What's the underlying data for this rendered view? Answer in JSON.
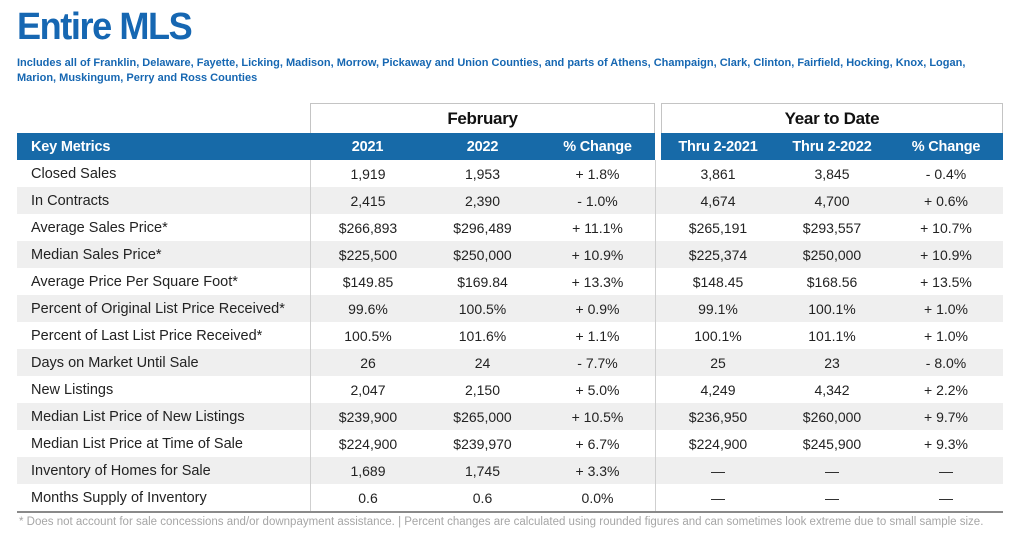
{
  "page": {
    "title": "Entire MLS",
    "subtitle": "Includes all of Franklin, Delaware, Fayette, Licking, Madison, Morrow, Pickaway and Union Counties, and parts of Athens, Champaign, Clark, Clinton, Fairfield, Hocking, Knox, Logan, Marion, Muskingum, Perry and Ross Counties",
    "footnote": "* Does not account for sale concessions and/or downpayment assistance. | Percent changes are calculated using rounded figures and can sometimes look extreme due to small sample size."
  },
  "colors": {
    "title_blue": "#1667B2",
    "header_bar_blue": "#176AA8",
    "stripe_gray": "#EFEFEF",
    "footnote_gray": "#A6A6A6"
  },
  "table": {
    "group_headers": {
      "february": "February",
      "year_to_date": "Year to Date"
    },
    "columns": {
      "key_metrics": "Key Metrics",
      "feb_2021": "2021",
      "feb_2022": "2022",
      "feb_change": "% Change",
      "ytd_2021": "Thru 2-2021",
      "ytd_2022": "Thru 2-2022",
      "ytd_change": "% Change"
    },
    "rows": [
      {
        "label": "Closed Sales",
        "cells": [
          "1,919",
          "1,953",
          "+ 1.8%",
          "3,861",
          "3,845",
          "- 0.4%"
        ]
      },
      {
        "label": "In Contracts",
        "cells": [
          "2,415",
          "2,390",
          "- 1.0%",
          "4,674",
          "4,700",
          "+ 0.6%"
        ]
      },
      {
        "label": "Average Sales Price*",
        "cells": [
          "$266,893",
          "$296,489",
          "+ 11.1%",
          "$265,191",
          "$293,557",
          "+ 10.7%"
        ]
      },
      {
        "label": "Median Sales Price*",
        "cells": [
          "$225,500",
          "$250,000",
          "+ 10.9%",
          "$225,374",
          "$250,000",
          "+ 10.9%"
        ]
      },
      {
        "label": "Average Price Per Square Foot*",
        "cells": [
          "$149.85",
          "$169.84",
          "+ 13.3%",
          "$148.45",
          "$168.56",
          "+ 13.5%"
        ]
      },
      {
        "label": "Percent of Original List Price Received*",
        "cells": [
          "99.6%",
          "100.5%",
          "+ 0.9%",
          "99.1%",
          "100.1%",
          "+ 1.0%"
        ]
      },
      {
        "label": "Percent of Last List Price Received*",
        "cells": [
          "100.5%",
          "101.6%",
          "+ 1.1%",
          "100.1%",
          "101.1%",
          "+ 1.0%"
        ]
      },
      {
        "label": "Days on Market Until Sale",
        "cells": [
          "26",
          "24",
          "- 7.7%",
          "25",
          "23",
          "- 8.0%"
        ]
      },
      {
        "label": "New Listings",
        "cells": [
          "2,047",
          "2,150",
          "+ 5.0%",
          "4,249",
          "4,342",
          "+ 2.2%"
        ]
      },
      {
        "label": "Median List Price of New Listings",
        "cells": [
          "$239,900",
          "$265,000",
          "+ 10.5%",
          "$236,950",
          "$260,000",
          "+ 9.7%"
        ]
      },
      {
        "label": "Median List Price at Time of Sale",
        "cells": [
          "$224,900",
          "$239,970",
          "+ 6.7%",
          "$224,900",
          "$245,900",
          "+ 9.3%"
        ]
      },
      {
        "label": "Inventory of Homes for Sale",
        "cells": [
          "1,689",
          "1,745",
          "+ 3.3%",
          "—",
          "—",
          "—"
        ]
      },
      {
        "label": "Months Supply of Inventory",
        "cells": [
          "0.6",
          "0.6",
          "0.0%",
          "—",
          "—",
          "—"
        ]
      }
    ]
  }
}
